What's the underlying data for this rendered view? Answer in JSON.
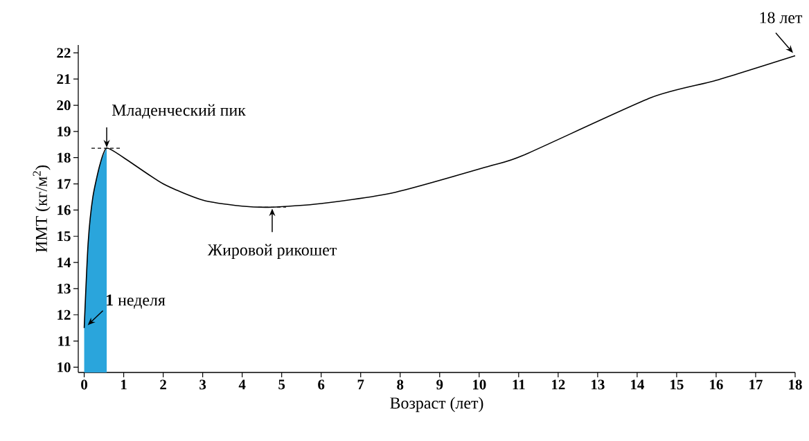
{
  "chart_data": {
    "type": "line",
    "xlabel": "Возраст (лет)",
    "ylabel": "ИМТ (кг/м$^{2}$)",
    "xlim": [
      -0.15,
      18
    ],
    "ylim": [
      9.8,
      22.3
    ],
    "xticks": [
      0,
      1,
      2,
      3,
      4,
      5,
      6,
      7,
      8,
      9,
      10,
      11,
      12,
      13,
      14,
      15,
      16,
      17,
      18
    ],
    "yticks": [
      10,
      11,
      12,
      13,
      14,
      15,
      16,
      17,
      18,
      19,
      20,
      21,
      22
    ],
    "series": [
      {
        "type": "area",
        "color": "#2aa5dc",
        "x": [
          0,
          0.1,
          0.22,
          0.4,
          0.57
        ],
        "values": [
          11.5,
          14.75,
          16.5,
          17.74,
          18.36
        ]
      },
      {
        "color": "#000000",
        "x": [
          0,
          0.1,
          0.22,
          0.4,
          0.57,
          1,
          2,
          3,
          4,
          4.76,
          6,
          7.88,
          10.24,
          11.12,
          14.35,
          16,
          18
        ],
        "values": [
          11.5,
          14.75,
          16.5,
          17.74,
          18.36,
          18.0,
          17.0,
          16.38,
          16.15,
          16.11,
          16.25,
          16.68,
          17.67,
          18.09,
          20.29,
          20.95,
          21.89
        ]
      }
    ],
    "annotations": [
      {
        "text": "Младенческий пик",
        "x": 0.57,
        "y": 18.36
      },
      {
        "text": "Жировой рикошет",
        "x": 4.76,
        "y": 16.11
      },
      {
        "text": "**1** неделя",
        "x": 0,
        "y": 11.5
      },
      {
        "text": "18 лет",
        "x": 18,
        "y": 21.89
      }
    ]
  }
}
